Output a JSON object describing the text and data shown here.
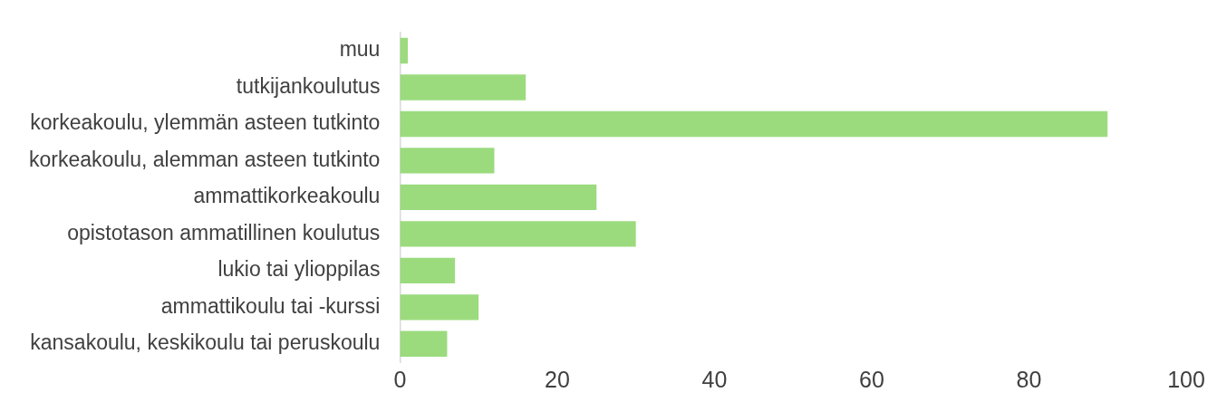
{
  "chart_data": {
    "type": "bar",
    "orientation": "horizontal",
    "categories": [
      "muu",
      "tutkijankoulutus",
      "korkeakoulu, ylemmän asteen tutkinto",
      "korkeakoulu, alemman asteen tutkinto",
      "ammattikorkeakoulu",
      "opistotason ammatillinen koulutus",
      "lukio tai ylioppilas",
      "ammattikoulu tai -kurssi",
      "kansakoulu, keskikoulu tai peruskoulu"
    ],
    "values": [
      1,
      16,
      90,
      12,
      25,
      30,
      7,
      10,
      6
    ],
    "color": "#9bdb7e",
    "xlim": [
      0,
      100
    ],
    "xticks": [
      0,
      20,
      40,
      60,
      80,
      100
    ],
    "grid": false,
    "legend": false
  }
}
